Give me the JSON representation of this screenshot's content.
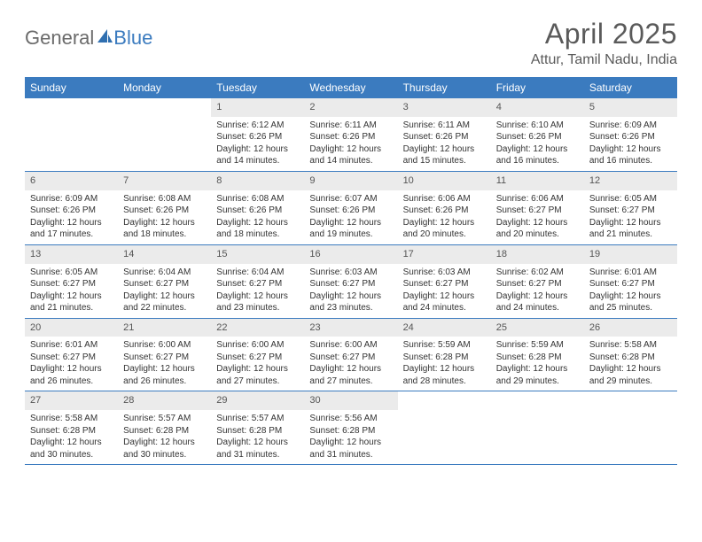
{
  "logo": {
    "part1": "General",
    "part2": "Blue"
  },
  "title": "April 2025",
  "location": "Attur, Tamil Nadu, India",
  "colors": {
    "header_bg": "#3b7bbf",
    "header_text": "#ffffff",
    "daynum_bg": "#ebebeb",
    "text": "#333333",
    "logo_gray": "#6b6b6b",
    "logo_blue": "#3b7bbf",
    "row_border": "#3b7bbf"
  },
  "weekdays": [
    "Sunday",
    "Monday",
    "Tuesday",
    "Wednesday",
    "Thursday",
    "Friday",
    "Saturday"
  ],
  "weeks": [
    [
      null,
      null,
      {
        "n": "1",
        "sr": "6:12 AM",
        "ss": "6:26 PM",
        "dl1": "12 hours",
        "dl2": "and 14 minutes."
      },
      {
        "n": "2",
        "sr": "6:11 AM",
        "ss": "6:26 PM",
        "dl1": "12 hours",
        "dl2": "and 14 minutes."
      },
      {
        "n": "3",
        "sr": "6:11 AM",
        "ss": "6:26 PM",
        "dl1": "12 hours",
        "dl2": "and 15 minutes."
      },
      {
        "n": "4",
        "sr": "6:10 AM",
        "ss": "6:26 PM",
        "dl1": "12 hours",
        "dl2": "and 16 minutes."
      },
      {
        "n": "5",
        "sr": "6:09 AM",
        "ss": "6:26 PM",
        "dl1": "12 hours",
        "dl2": "and 16 minutes."
      }
    ],
    [
      {
        "n": "6",
        "sr": "6:09 AM",
        "ss": "6:26 PM",
        "dl1": "12 hours",
        "dl2": "and 17 minutes."
      },
      {
        "n": "7",
        "sr": "6:08 AM",
        "ss": "6:26 PM",
        "dl1": "12 hours",
        "dl2": "and 18 minutes."
      },
      {
        "n": "8",
        "sr": "6:08 AM",
        "ss": "6:26 PM",
        "dl1": "12 hours",
        "dl2": "and 18 minutes."
      },
      {
        "n": "9",
        "sr": "6:07 AM",
        "ss": "6:26 PM",
        "dl1": "12 hours",
        "dl2": "and 19 minutes."
      },
      {
        "n": "10",
        "sr": "6:06 AM",
        "ss": "6:26 PM",
        "dl1": "12 hours",
        "dl2": "and 20 minutes."
      },
      {
        "n": "11",
        "sr": "6:06 AM",
        "ss": "6:27 PM",
        "dl1": "12 hours",
        "dl2": "and 20 minutes."
      },
      {
        "n": "12",
        "sr": "6:05 AM",
        "ss": "6:27 PM",
        "dl1": "12 hours",
        "dl2": "and 21 minutes."
      }
    ],
    [
      {
        "n": "13",
        "sr": "6:05 AM",
        "ss": "6:27 PM",
        "dl1": "12 hours",
        "dl2": "and 21 minutes."
      },
      {
        "n": "14",
        "sr": "6:04 AM",
        "ss": "6:27 PM",
        "dl1": "12 hours",
        "dl2": "and 22 minutes."
      },
      {
        "n": "15",
        "sr": "6:04 AM",
        "ss": "6:27 PM",
        "dl1": "12 hours",
        "dl2": "and 23 minutes."
      },
      {
        "n": "16",
        "sr": "6:03 AM",
        "ss": "6:27 PM",
        "dl1": "12 hours",
        "dl2": "and 23 minutes."
      },
      {
        "n": "17",
        "sr": "6:03 AM",
        "ss": "6:27 PM",
        "dl1": "12 hours",
        "dl2": "and 24 minutes."
      },
      {
        "n": "18",
        "sr": "6:02 AM",
        "ss": "6:27 PM",
        "dl1": "12 hours",
        "dl2": "and 24 minutes."
      },
      {
        "n": "19",
        "sr": "6:01 AM",
        "ss": "6:27 PM",
        "dl1": "12 hours",
        "dl2": "and 25 minutes."
      }
    ],
    [
      {
        "n": "20",
        "sr": "6:01 AM",
        "ss": "6:27 PM",
        "dl1": "12 hours",
        "dl2": "and 26 minutes."
      },
      {
        "n": "21",
        "sr": "6:00 AM",
        "ss": "6:27 PM",
        "dl1": "12 hours",
        "dl2": "and 26 minutes."
      },
      {
        "n": "22",
        "sr": "6:00 AM",
        "ss": "6:27 PM",
        "dl1": "12 hours",
        "dl2": "and 27 minutes."
      },
      {
        "n": "23",
        "sr": "6:00 AM",
        "ss": "6:27 PM",
        "dl1": "12 hours",
        "dl2": "and 27 minutes."
      },
      {
        "n": "24",
        "sr": "5:59 AM",
        "ss": "6:28 PM",
        "dl1": "12 hours",
        "dl2": "and 28 minutes."
      },
      {
        "n": "25",
        "sr": "5:59 AM",
        "ss": "6:28 PM",
        "dl1": "12 hours",
        "dl2": "and 29 minutes."
      },
      {
        "n": "26",
        "sr": "5:58 AM",
        "ss": "6:28 PM",
        "dl1": "12 hours",
        "dl2": "and 29 minutes."
      }
    ],
    [
      {
        "n": "27",
        "sr": "5:58 AM",
        "ss": "6:28 PM",
        "dl1": "12 hours",
        "dl2": "and 30 minutes."
      },
      {
        "n": "28",
        "sr": "5:57 AM",
        "ss": "6:28 PM",
        "dl1": "12 hours",
        "dl2": "and 30 minutes."
      },
      {
        "n": "29",
        "sr": "5:57 AM",
        "ss": "6:28 PM",
        "dl1": "12 hours",
        "dl2": "and 31 minutes."
      },
      {
        "n": "30",
        "sr": "5:56 AM",
        "ss": "6:28 PM",
        "dl1": "12 hours",
        "dl2": "and 31 minutes."
      },
      null,
      null,
      null
    ]
  ],
  "labels": {
    "sunrise": "Sunrise:",
    "sunset": "Sunset:",
    "daylight": "Daylight:"
  }
}
